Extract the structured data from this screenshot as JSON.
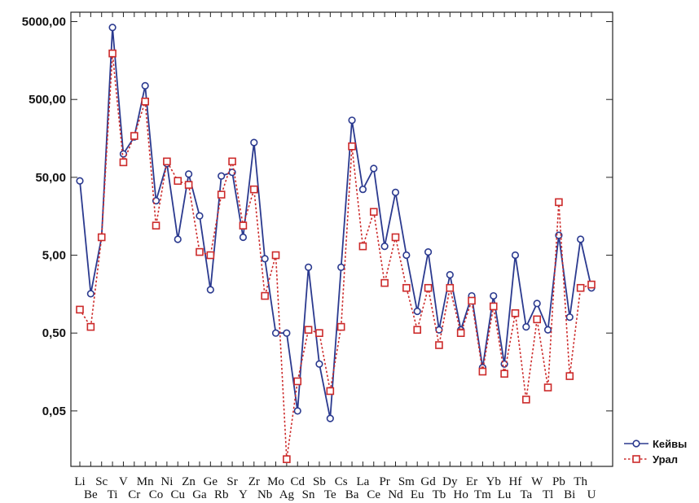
{
  "chart_data": {
    "type": "line",
    "y_scale": "log",
    "ylim": [
      0.0097,
      6600
    ],
    "yticks": [
      0.05,
      0.5,
      5,
      50,
      500,
      5000
    ],
    "ytick_labels": [
      "0,05",
      "0,50",
      "5,00",
      "50,00",
      "500,00",
      "5000,00"
    ],
    "grid": false,
    "legend_position": "bottom-right",
    "categories": [
      "Li",
      "Be",
      "Sc",
      "Ti",
      "V",
      "Cr",
      "Mn",
      "Co",
      "Ni",
      "Cu",
      "Zn",
      "Ga",
      "Ge",
      "Rb",
      "Sr",
      "Y",
      "Zr",
      "Nb",
      "Mo",
      "Ag",
      "Cd",
      "Sn",
      "Sb",
      "Te",
      "Cs",
      "Ba",
      "La",
      "Ce",
      "Pr",
      "Nd",
      "Sm",
      "Eu",
      "Gd",
      "Tb",
      "Dy",
      "Ho",
      "Er",
      "Tm",
      "Yb",
      "Lu",
      "Hf",
      "Ta",
      "W",
      "Tl",
      "Pb",
      "Bi",
      "Th",
      "U"
    ],
    "series": [
      {
        "name": "Кейвы",
        "color": "#2b3a8f",
        "marker": "circle",
        "line": "solid",
        "values": [
          45,
          1.6,
          8.5,
          4200,
          100,
          165,
          750,
          25,
          75,
          8,
          55,
          16,
          1.8,
          52,
          58,
          8.5,
          140,
          4.5,
          0.5,
          0.5,
          0.05,
          3.5,
          0.2,
          0.04,
          3.5,
          270,
          35,
          65,
          6.5,
          32,
          5,
          0.95,
          5.5,
          0.55,
          2.8,
          0.55,
          1.5,
          0.18,
          1.5,
          0.2,
          5,
          0.6,
          1.2,
          0.55,
          9,
          0.8,
          8,
          1.9
        ]
      },
      {
        "name": "Урал",
        "color": "#cc2a2a",
        "marker": "square",
        "line": "dotted",
        "values": [
          1.0,
          0.6,
          8.5,
          1950,
          78,
          170,
          470,
          12,
          80,
          45,
          40,
          5.5,
          5,
          30,
          80,
          12,
          35,
          1.5,
          5,
          0.012,
          0.12,
          0.55,
          0.5,
          0.09,
          0.6,
          125,
          6.5,
          18,
          2.2,
          8.5,
          1.9,
          0.55,
          1.9,
          0.35,
          1.9,
          0.5,
          1.3,
          0.16,
          1.1,
          0.15,
          0.9,
          0.07,
          0.75,
          0.1,
          24,
          0.14,
          1.9,
          2.1
        ]
      }
    ]
  }
}
